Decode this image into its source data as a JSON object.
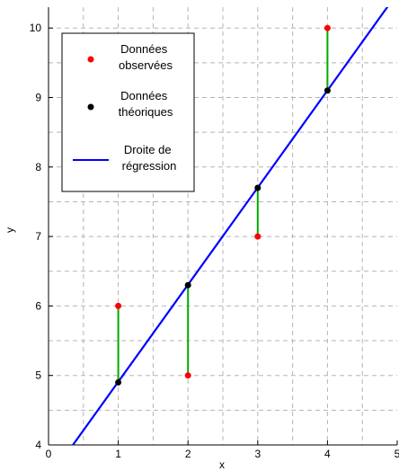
{
  "chart_data": {
    "type": "scatter",
    "xlabel": "x",
    "ylabel": "y",
    "xlim": [
      0,
      5
    ],
    "ylim": [
      4,
      10.3
    ],
    "x_ticks": [
      0,
      1,
      2,
      3,
      4,
      5
    ],
    "y_ticks": [
      4,
      5,
      6,
      7,
      8,
      9,
      10
    ],
    "grid": true,
    "legend_position": "top-left",
    "colors": {
      "observed": "#ff0000",
      "theoretical": "#000000",
      "regression": "#0000ff",
      "residual": "#00aa00"
    },
    "series": [
      {
        "name": "Données observées",
        "type": "scatter",
        "x": [
          1,
          2,
          3,
          4
        ],
        "y": [
          6,
          5,
          7,
          10
        ]
      },
      {
        "name": "Données théoriques",
        "type": "scatter",
        "x": [
          1,
          2,
          3,
          4
        ],
        "y": [
          4.9,
          6.3,
          7.7,
          9.1
        ]
      },
      {
        "name": "Droite de régression",
        "type": "line",
        "x": [
          0.35,
          5
        ],
        "y": [
          4.0,
          10.5
        ]
      }
    ],
    "legend": [
      {
        "label_lines": [
          "Données",
          "observées"
        ]
      },
      {
        "label_lines": [
          "Données",
          "théoriques"
        ]
      },
      {
        "label_lines": [
          "Droite de",
          "régression"
        ]
      }
    ]
  }
}
